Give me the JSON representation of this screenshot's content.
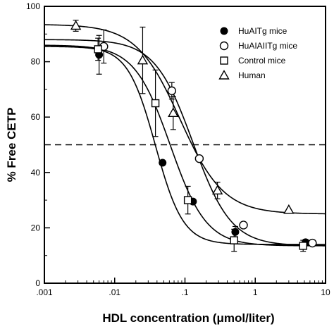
{
  "chart_data": {
    "type": "scatter",
    "title": "",
    "xlabel": "HDL concentration (μmol/liter)",
    "ylabel": "% Free CETP",
    "x_scale": "log",
    "xlim": [
      0.001,
      10
    ],
    "ylim": [
      0,
      100
    ],
    "x_ticks": [
      {
        "value": 0.001,
        "label": ".001"
      },
      {
        "value": 0.01,
        "label": ".01"
      },
      {
        "value": 0.1,
        "label": ".1"
      },
      {
        "value": 1,
        "label": "1"
      },
      {
        "value": 10,
        "label": "10"
      }
    ],
    "y_ticks": [
      {
        "value": 0,
        "label": "0"
      },
      {
        "value": 20,
        "label": "20"
      },
      {
        "value": 40,
        "label": "40"
      },
      {
        "value": 60,
        "label": "60"
      },
      {
        "value": 80,
        "label": "80"
      },
      {
        "value": 100,
        "label": "100"
      }
    ],
    "reference_line": {
      "y": 50,
      "style": "dashed"
    },
    "legend_position": "top-right",
    "series": [
      {
        "name": "HuAITg mice",
        "marker": "filled-circle",
        "points": [
          {
            "x": 0.006,
            "y": 82.5,
            "err": 7
          },
          {
            "x": 0.048,
            "y": 43.5,
            "err": 0
          },
          {
            "x": 0.13,
            "y": 29.5,
            "err": 0
          },
          {
            "x": 0.52,
            "y": 18.5,
            "err": 2
          },
          {
            "x": 5.2,
            "y": 14.8,
            "err": 1
          }
        ],
        "fit": {
          "top": 85.5,
          "bottom": 14,
          "ec50": 0.038,
          "hill": 2.2
        }
      },
      {
        "name": "HuAIAIITg mice",
        "marker": "open-circle",
        "points": [
          {
            "x": 0.007,
            "y": 85.5,
            "err": 6
          },
          {
            "x": 0.065,
            "y": 69.5,
            "err": 3
          },
          {
            "x": 0.16,
            "y": 45,
            "err": 0
          },
          {
            "x": 0.68,
            "y": 21,
            "err": 0
          },
          {
            "x": 6.5,
            "y": 14.5,
            "err": 0
          }
        ],
        "fit": {
          "top": 88,
          "bottom": 13.5,
          "ec50": 0.13,
          "hill": 1.6
        }
      },
      {
        "name": "Control mice",
        "marker": "open-square",
        "points": [
          {
            "x": 0.0058,
            "y": 84.5,
            "err": 4
          },
          {
            "x": 0.038,
            "y": 65,
            "err": 12
          },
          {
            "x": 0.11,
            "y": 30,
            "err": 5
          },
          {
            "x": 0.5,
            "y": 15.5,
            "err": 4
          },
          {
            "x": 4.8,
            "y": 13.5,
            "err": 2
          }
        ],
        "fit": {
          "top": 86,
          "bottom": 13.5,
          "ec50": 0.062,
          "hill": 1.7
        }
      },
      {
        "name": "Human",
        "marker": "open-triangle",
        "points": [
          {
            "x": 0.0028,
            "y": 93,
            "err": 2
          },
          {
            "x": 0.025,
            "y": 80.5,
            "err": 12
          },
          {
            "x": 0.068,
            "y": 61.5,
            "err": 6
          },
          {
            "x": 0.29,
            "y": 33.5,
            "err": 3
          },
          {
            "x": 3.0,
            "y": 26.5,
            "err": 0
          }
        ],
        "fit": {
          "top": 93.5,
          "bottom": 25,
          "ec50": 0.085,
          "hill": 1.4
        }
      }
    ]
  }
}
